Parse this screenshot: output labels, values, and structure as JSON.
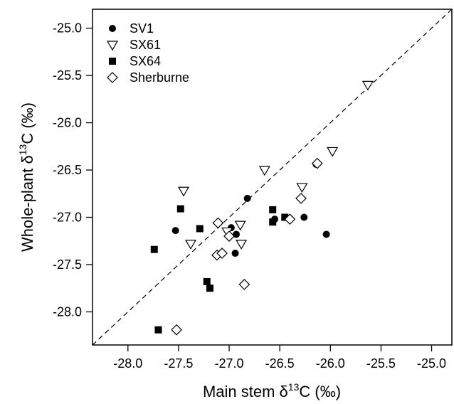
{
  "chart_data": {
    "type": "scatter",
    "title": "",
    "xlabel": {
      "prefix": "Main stem δ",
      "sup": "13",
      "suffix": "C (‰)"
    },
    "ylabel": {
      "prefix": "Whole-plant δ",
      "sup": "13",
      "suffix": "C (‰)"
    },
    "xlim": [
      -28.35,
      -24.8
    ],
    "ylim": [
      -28.35,
      -24.8
    ],
    "xticks": [
      -28.0,
      -27.5,
      -27.0,
      -26.5,
      -26.0,
      -25.5,
      -25.0
    ],
    "yticks": [
      -28.0,
      -27.5,
      -27.0,
      -26.5,
      -26.0,
      -25.5,
      -25.0
    ],
    "tick_labels": [
      "-28.0",
      "-27.5",
      "-27.0",
      "-26.5",
      "-26.0",
      "-25.5",
      "-25.0"
    ],
    "grid": false,
    "legend_position": "top-left",
    "reference_line": {
      "style": "dashed",
      "from": [
        -28.35,
        -28.35
      ],
      "to": [
        -24.8,
        -24.8
      ]
    },
    "series": [
      {
        "name": "SV1",
        "marker": "circle-filled",
        "color": "#000000",
        "points": [
          {
            "x": -27.53,
            "y": -27.14
          },
          {
            "x": -26.98,
            "y": -27.11
          },
          {
            "x": -26.93,
            "y": -27.18
          },
          {
            "x": -26.94,
            "y": -27.38
          },
          {
            "x": -26.82,
            "y": -26.8
          },
          {
            "x": -26.55,
            "y": -27.02
          },
          {
            "x": -26.26,
            "y": -27.0
          },
          {
            "x": -26.04,
            "y": -27.18
          },
          {
            "x": -26.14,
            "y": -26.44
          }
        ]
      },
      {
        "name": "SX61",
        "marker": "triangle-down-open",
        "color": "#000000",
        "points": [
          {
            "x": -25.63,
            "y": -25.6
          },
          {
            "x": -25.98,
            "y": -26.3
          },
          {
            "x": -26.65,
            "y": -26.5
          },
          {
            "x": -26.28,
            "y": -26.68
          },
          {
            "x": -27.45,
            "y": -26.72
          },
          {
            "x": -27.38,
            "y": -27.28
          },
          {
            "x": -27.02,
            "y": -27.15
          },
          {
            "x": -26.89,
            "y": -27.08
          },
          {
            "x": -26.88,
            "y": -27.28
          }
        ]
      },
      {
        "name": "SX64",
        "marker": "square-filled",
        "color": "#000000",
        "points": [
          {
            "x": -27.74,
            "y": -27.34
          },
          {
            "x": -27.48,
            "y": -26.91
          },
          {
            "x": -27.29,
            "y": -27.12
          },
          {
            "x": -26.57,
            "y": -26.92
          },
          {
            "x": -26.45,
            "y": -27.0
          },
          {
            "x": -26.57,
            "y": -27.05
          },
          {
            "x": -27.22,
            "y": -27.68
          },
          {
            "x": -27.19,
            "y": -27.75
          },
          {
            "x": -27.7,
            "y": -28.19
          }
        ]
      },
      {
        "name": "Sherburne",
        "marker": "diamond-open",
        "color": "#000000",
        "points": [
          {
            "x": -27.11,
            "y": -27.06
          },
          {
            "x": -27.12,
            "y": -27.4
          },
          {
            "x": -27.07,
            "y": -27.38
          },
          {
            "x": -27.0,
            "y": -27.2
          },
          {
            "x": -26.85,
            "y": -27.71
          },
          {
            "x": -26.4,
            "y": -27.02
          },
          {
            "x": -26.29,
            "y": -26.8
          },
          {
            "x": -26.13,
            "y": -26.43
          },
          {
            "x": -27.52,
            "y": -28.19
          }
        ]
      }
    ]
  }
}
